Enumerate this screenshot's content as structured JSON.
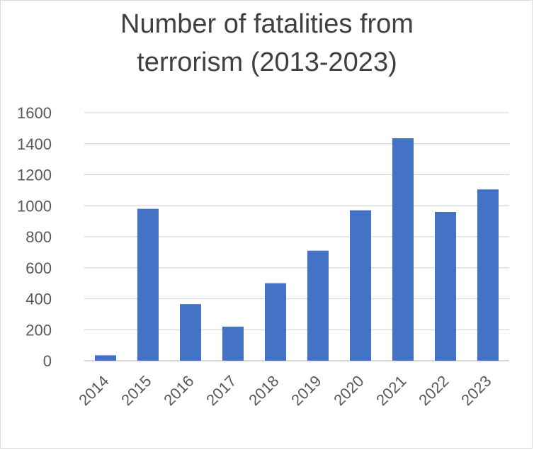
{
  "chart_data": {
    "type": "bar",
    "title_lines": [
      "Number of fatalities from",
      "terrorism (2013-2023)"
    ],
    "categories": [
      "2014",
      "2015",
      "2016",
      "2017",
      "2018",
      "2019",
      "2020",
      "2021",
      "2022",
      "2023"
    ],
    "values": [
      35,
      980,
      365,
      220,
      500,
      710,
      970,
      1435,
      960,
      1105
    ],
    "ylim": [
      0,
      1600
    ],
    "yticks": [
      "0",
      "200",
      "400",
      "600",
      "800",
      "1000",
      "1200",
      "1400",
      "1600"
    ],
    "grid": true,
    "legend": false,
    "bar_color": "#4472C4"
  }
}
